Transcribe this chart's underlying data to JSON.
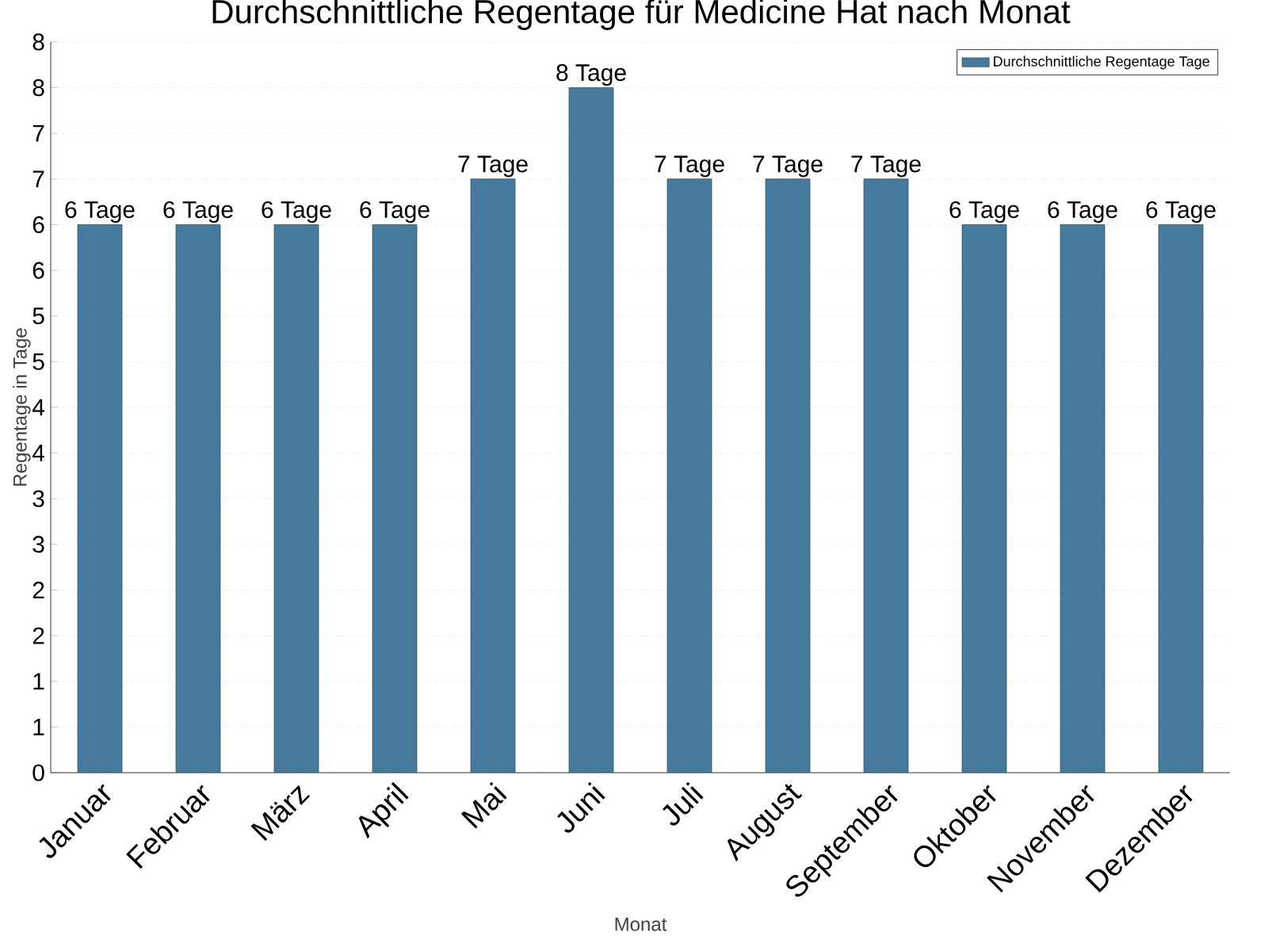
{
  "chart_data": {
    "type": "bar",
    "title": "Durchschnittliche Regentage für Medicine Hat nach Monat",
    "xlabel": "Monat",
    "ylabel": "Regentage in Tage",
    "categories": [
      "Januar",
      "Februar",
      "März",
      "April",
      "Mai",
      "Juni",
      "Juli",
      "August",
      "September",
      "Oktober",
      "November",
      "Dezember"
    ],
    "series": [
      {
        "name": "Durchschnittliche Regentage Tage",
        "color": "#467a9c",
        "values": [
          6,
          6,
          6,
          6,
          6.5,
          7.5,
          6.5,
          6.5,
          6.5,
          6,
          6,
          6
        ],
        "value_labels": [
          "6 Tage",
          "6 Tage",
          "6 Tage",
          "6 Tage",
          "7 Tage",
          "8 Tage",
          "7 Tage",
          "7 Tage",
          "7 Tage",
          "6 Tage",
          "6 Tage",
          "6 Tage"
        ]
      }
    ],
    "ylim": [
      0,
      8
    ],
    "yticks": [
      0,
      {
        "value": 0.5,
        "label": "1"
      },
      1,
      {
        "value": 1.5,
        "label": "2"
      },
      2,
      {
        "value": 2.5,
        "label": "3"
      },
      3,
      {
        "value": 3.5,
        "label": "4"
      },
      4,
      {
        "value": 4.5,
        "label": "5"
      },
      5,
      {
        "value": 5.5,
        "label": "6"
      },
      6,
      {
        "value": 6.5,
        "label": "7"
      },
      7,
      {
        "value": 7.5,
        "label": "8"
      },
      8
    ],
    "grid": "y",
    "legend": "top right"
  }
}
